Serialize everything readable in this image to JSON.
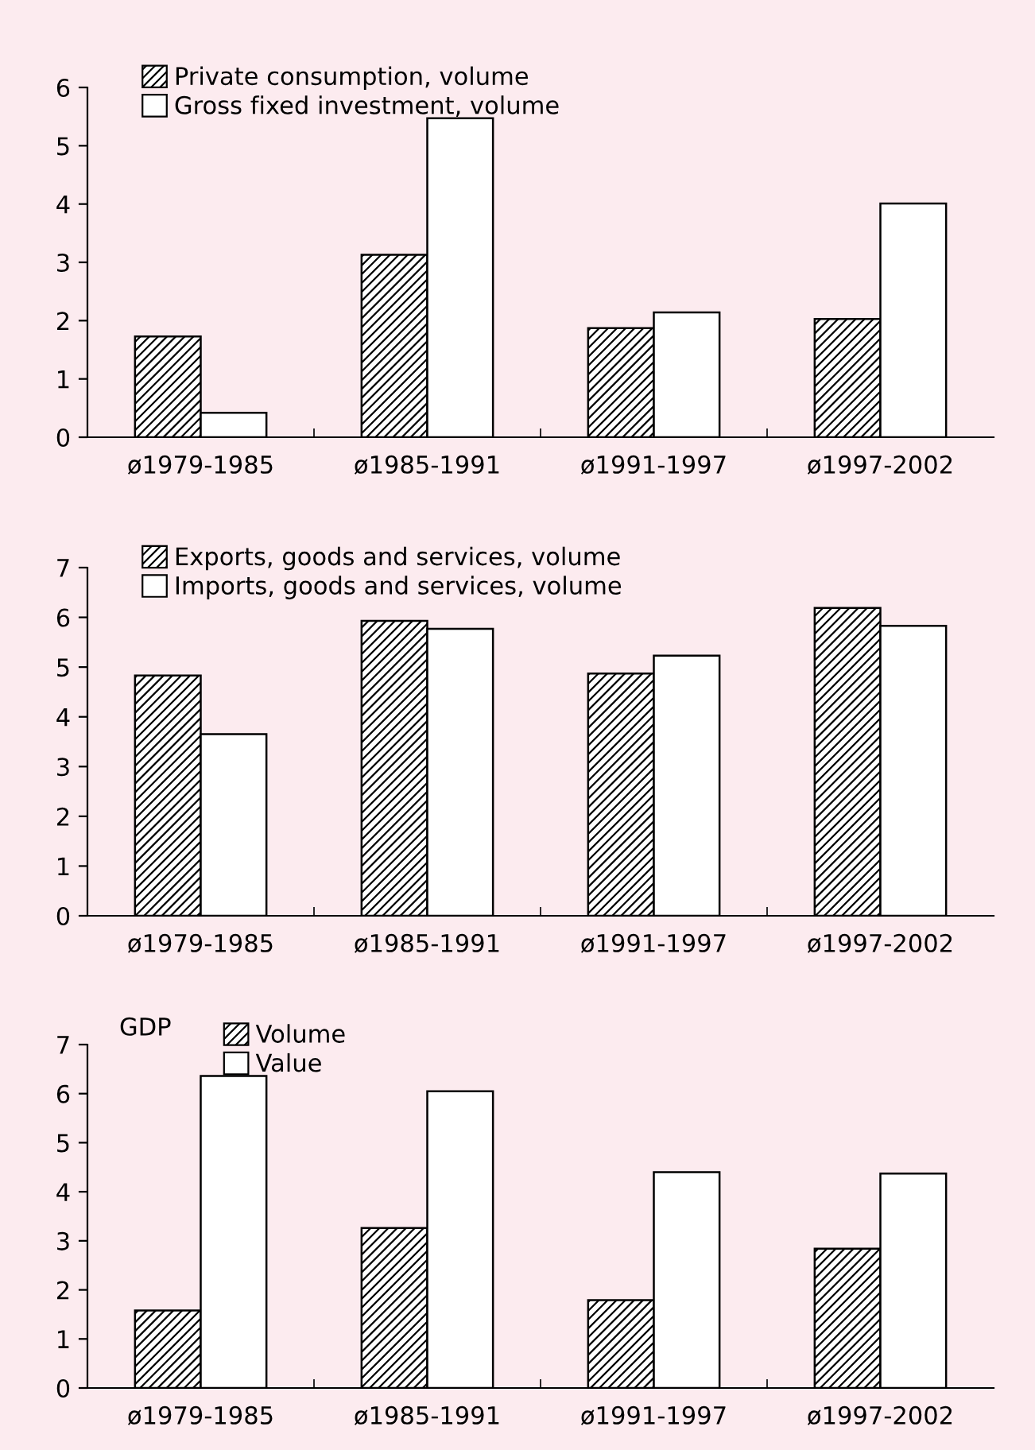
{
  "chart_data": [
    {
      "type": "bar",
      "categories": [
        "ø1979-1985",
        "ø1985-1991",
        "ø1991-1997",
        "ø1997-2002"
      ],
      "ylim": [
        0,
        6
      ],
      "yticks": [
        0,
        1,
        2,
        3,
        4,
        5,
        6
      ],
      "grid": false,
      "legend": "top left",
      "series": [
        {
          "name": "Private consumption, volume",
          "color": "#000000",
          "values": [
            1.73,
            3.13,
            1.87,
            2.03
          ]
        },
        {
          "name": "Gross fixed investment, volume",
          "color": "#ffffff",
          "values": [
            0.42,
            5.47,
            2.14,
            4.01
          ]
        }
      ]
    },
    {
      "type": "bar",
      "categories": [
        "ø1979-1985",
        "ø1985-1991",
        "ø1991-1997",
        "ø1997-2002"
      ],
      "ylim": [
        0,
        7
      ],
      "yticks": [
        0,
        1,
        2,
        3,
        4,
        5,
        6,
        7
      ],
      "grid": false,
      "legend": "top left",
      "series": [
        {
          "name": "Exports, goods and services, volume",
          "color": "#000000",
          "values": [
            4.83,
            5.93,
            4.87,
            6.19
          ]
        },
        {
          "name": "Imports, goods and services, volume",
          "color": "#ffffff",
          "values": [
            3.65,
            5.77,
            5.23,
            5.83
          ]
        }
      ]
    },
    {
      "type": "bar",
      "categories": [
        "ø1979-1985",
        "ø1985-1991",
        "ø1991-1997",
        "ø1997-2002"
      ],
      "ylim": [
        0,
        7
      ],
      "yticks": [
        0,
        1,
        2,
        3,
        4,
        5,
        6,
        7
      ],
      "grid": false,
      "legend": "top left",
      "legend_title": "GDP",
      "series": [
        {
          "name": "Volume",
          "color": "#000000",
          "values": [
            1.58,
            3.26,
            1.79,
            2.84
          ]
        },
        {
          "name": "Value",
          "color": "#ffffff",
          "values": [
            6.36,
            6.05,
            4.4,
            4.37
          ]
        }
      ]
    }
  ]
}
